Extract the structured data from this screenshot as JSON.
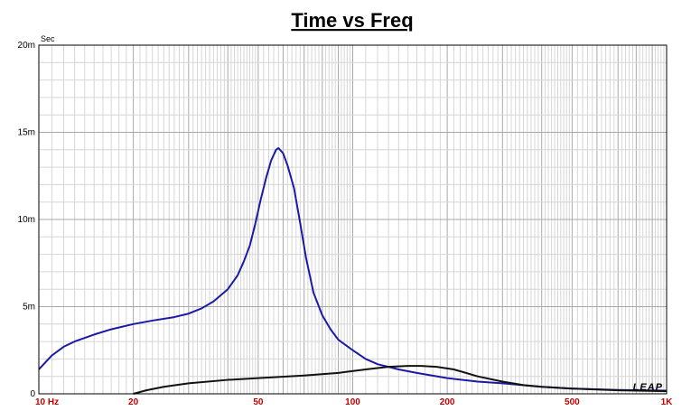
{
  "chart_data": {
    "type": "line",
    "title": "Time vs Freq",
    "ylabel": "Sec",
    "xlabel": "",
    "x_scale": "log",
    "xlim": [
      10,
      1000
    ],
    "ylim": [
      0,
      0.02
    ],
    "grid": true,
    "x_ticks": [
      {
        "value": 10,
        "label": "10 Hz"
      },
      {
        "value": 20,
        "label": "20"
      },
      {
        "value": 50,
        "label": "50"
      },
      {
        "value": 100,
        "label": "100"
      },
      {
        "value": 200,
        "label": "200"
      },
      {
        "value": 500,
        "label": "500"
      },
      {
        "value": 1000,
        "label": "1K"
      }
    ],
    "y_ticks": [
      {
        "value": 0,
        "label": "0"
      },
      {
        "value": 0.005,
        "label": "5m"
      },
      {
        "value": 0.01,
        "label": "10m"
      },
      {
        "value": 0.015,
        "label": "15m"
      },
      {
        "value": 0.02,
        "label": "20m"
      }
    ],
    "series": [
      {
        "color": "#1a1aa6",
        "points": [
          [
            10,
            0.0014
          ],
          [
            11,
            0.0022
          ],
          [
            12,
            0.0027
          ],
          [
            13,
            0.003
          ],
          [
            15,
            0.0034
          ],
          [
            17,
            0.0037
          ],
          [
            20,
            0.004
          ],
          [
            23,
            0.0042
          ],
          [
            27,
            0.0044
          ],
          [
            30,
            0.0046
          ],
          [
            33,
            0.0049
          ],
          [
            36,
            0.0053
          ],
          [
            40,
            0.006
          ],
          [
            43,
            0.0068
          ],
          [
            45,
            0.0076
          ],
          [
            47,
            0.0085
          ],
          [
            49,
            0.0098
          ],
          [
            51,
            0.0112
          ],
          [
            53,
            0.0124
          ],
          [
            55,
            0.0134
          ],
          [
            57,
            0.014
          ],
          [
            58,
            0.0141
          ],
          [
            60,
            0.0138
          ],
          [
            62,
            0.0131
          ],
          [
            65,
            0.0118
          ],
          [
            68,
            0.0098
          ],
          [
            71,
            0.0078
          ],
          [
            75,
            0.0058
          ],
          [
            80,
            0.0045
          ],
          [
            85,
            0.0037
          ],
          [
            90,
            0.0031
          ],
          [
            100,
            0.0025
          ],
          [
            110,
            0.002
          ],
          [
            120,
            0.0017
          ],
          [
            140,
            0.0014
          ],
          [
            160,
            0.0012
          ],
          [
            200,
            0.0009
          ],
          [
            250,
            0.0007
          ],
          [
            300,
            0.0006
          ],
          [
            400,
            0.0004
          ],
          [
            500,
            0.0003
          ],
          [
            700,
            0.00022
          ],
          [
            1000,
            0.00018
          ]
        ]
      },
      {
        "color": "#111111",
        "points": [
          [
            20,
            0
          ],
          [
            22,
            0.0002
          ],
          [
            25,
            0.0004
          ],
          [
            30,
            0.0006
          ],
          [
            40,
            0.0008
          ],
          [
            50,
            0.0009
          ],
          [
            70,
            0.00105
          ],
          [
            90,
            0.0012
          ],
          [
            110,
            0.0014
          ],
          [
            130,
            0.00155
          ],
          [
            150,
            0.0016
          ],
          [
            165,
            0.0016
          ],
          [
            185,
            0.00155
          ],
          [
            210,
            0.0014
          ],
          [
            250,
            0.001
          ],
          [
            300,
            0.0007
          ],
          [
            350,
            0.0005
          ],
          [
            400,
            0.0004
          ],
          [
            500,
            0.0003
          ],
          [
            700,
            0.0002
          ],
          [
            1000,
            0.00015
          ]
        ]
      }
    ]
  },
  "branding": {
    "logo": "LEAP"
  }
}
